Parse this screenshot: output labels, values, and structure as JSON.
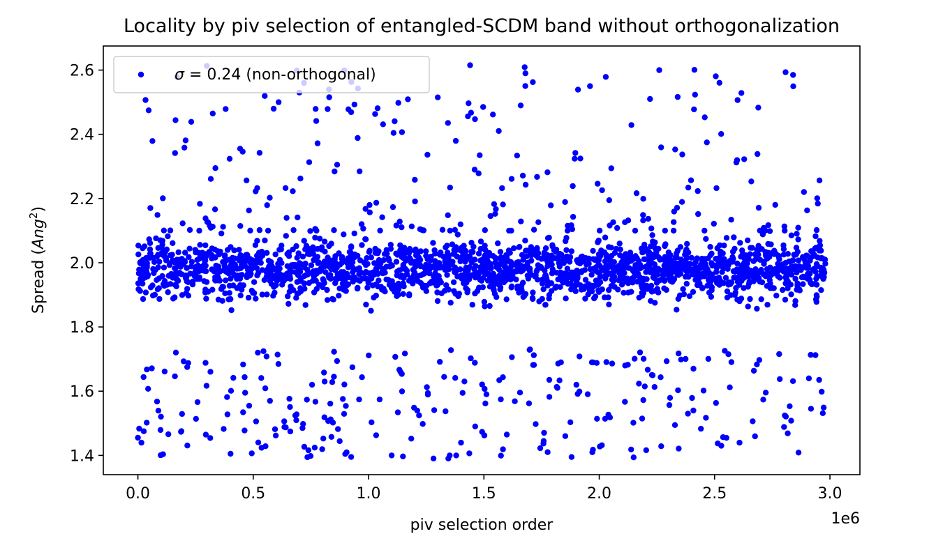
{
  "chart_data": {
    "type": "scatter",
    "title": "Locality by piv selection of entangled-SCDM band without orthogonalization",
    "xlabel": "piv selection order",
    "ylabel_prefix": "Spread (",
    "ylabel_unit_base": "Ang",
    "ylabel_unit_exp": "2",
    "ylabel_suffix": ")",
    "x_offset_label": "1e6",
    "xlim": [
      -0.15,
      3.13
    ],
    "ylim": [
      1.34,
      2.675
    ],
    "xticks": [
      0.0,
      0.5,
      1.0,
      1.5,
      2.0,
      2.5,
      3.0
    ],
    "xtick_labels": [
      "0.0",
      "0.5",
      "1.0",
      "1.5",
      "2.0",
      "2.5",
      "3.0"
    ],
    "yticks": [
      1.4,
      1.6,
      1.8,
      2.0,
      2.2,
      2.4,
      2.6
    ],
    "ytick_labels": [
      "1.4",
      "1.6",
      "1.8",
      "2.0",
      "2.2",
      "2.4",
      "2.6"
    ],
    "grid": false,
    "legend_position": "top-left",
    "series": [
      {
        "legend_sigma": "σ",
        "legend_rest": " = 0.24 (non-orthogonal)",
        "color": "#0000ff",
        "x_range": [
          0.0,
          2.98
        ],
        "n_points": 2400,
        "core_mean": 1.98,
        "core_range": [
          1.85,
          2.1
        ],
        "upper_range": [
          2.1,
          2.62
        ],
        "lower_range": [
          1.39,
          1.73
        ],
        "outliers": [
          {
            "x": 0.72,
            "y": 2.56
          },
          {
            "x": 1.44,
            "y": 2.615
          },
          {
            "x": 2.26,
            "y": 2.6
          },
          {
            "x": 2.84,
            "y": 2.585
          },
          {
            "x": 1.68,
            "y": 2.59
          },
          {
            "x": 1.96,
            "y": 2.55
          },
          {
            "x": 0.7,
            "y": 2.53
          },
          {
            "x": 1.3,
            "y": 2.515
          },
          {
            "x": 2.22,
            "y": 2.51
          },
          {
            "x": 0.61,
            "y": 2.5
          },
          {
            "x": 1.1,
            "y": 1.4
          },
          {
            "x": 1.38,
            "y": 1.4
          },
          {
            "x": 1.97,
            "y": 1.41
          },
          {
            "x": 0.0,
            "y": 1.455
          },
          {
            "x": 1.7,
            "y": 1.73
          },
          {
            "x": 0.52,
            "y": 1.72
          },
          {
            "x": 2.56,
            "y": 1.715
          }
        ]
      }
    ]
  }
}
